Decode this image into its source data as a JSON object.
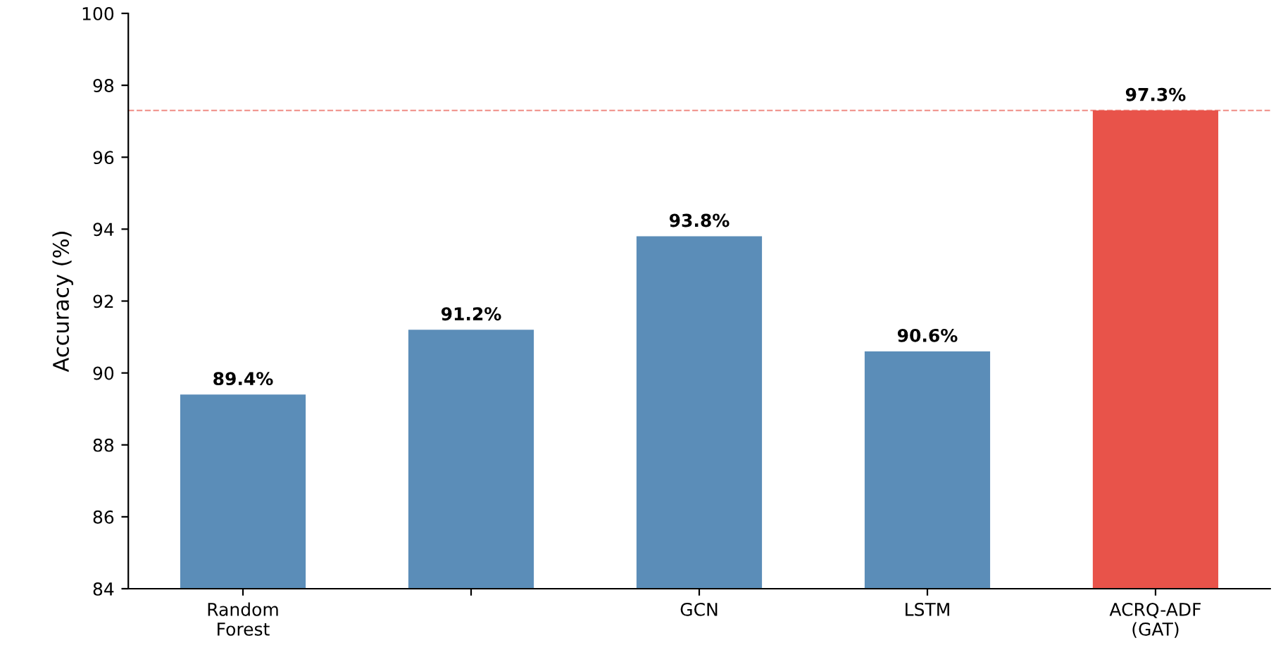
{
  "chart_data": {
    "type": "bar",
    "ylabel": "Accuracy (%)",
    "categories": [
      "Random\nForest",
      null,
      "GCN",
      "LSTM",
      "ACRQ-ADF\n(GAT)"
    ],
    "values": [
      89.4,
      91.2,
      93.8,
      90.6,
      97.3
    ],
    "colors": [
      "#5b8db8",
      "#5b8db8",
      "#5b8db8",
      "#5b8db8",
      "#e8534a"
    ],
    "ylim": [
      84,
      100
    ],
    "yticks": [
      84,
      86,
      88,
      90,
      92,
      94,
      96,
      98,
      100
    ],
    "value_labels": [
      "89.4%",
      "91.2%",
      "93.8%",
      "90.6%",
      "97.3%"
    ],
    "ref_lines": [
      {
        "axis": "y",
        "value": 97.3,
        "color": "#e8534a",
        "line_style": "dashed"
      }
    ],
    "grid": false
  }
}
